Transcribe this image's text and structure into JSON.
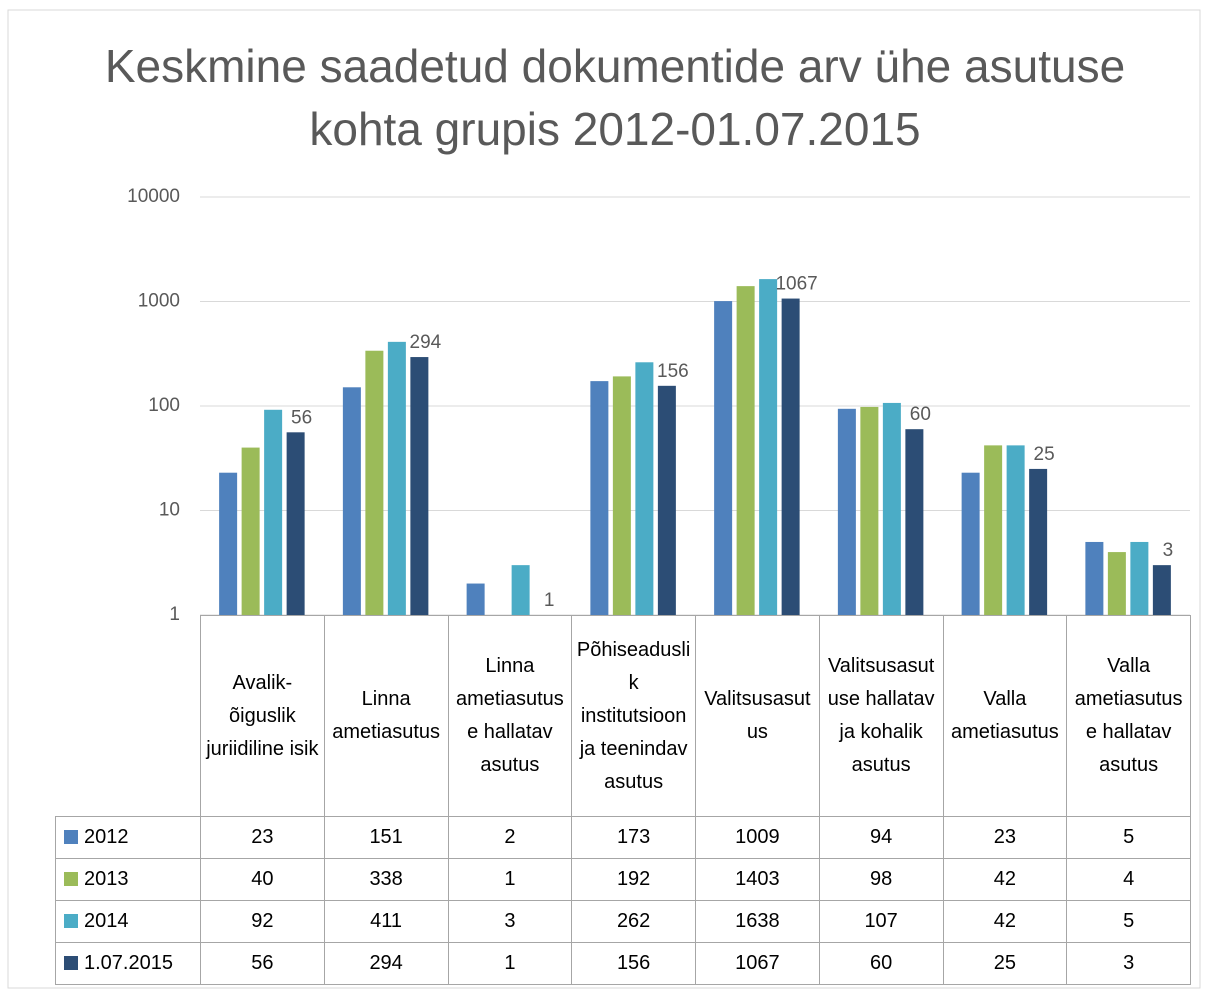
{
  "chart_data": {
    "type": "bar",
    "title": "Keskmine saadetud dokumentide arv ühe asutuse kohta grupis 2012-01.07.2015",
    "categories": [
      "Avalik-õiguslik juriidiline isik",
      "Linna ametiasutus",
      "Linna ametiasutuse hallatav asutus",
      "Põhiseaduslik institutsioon ja teenindav asutus",
      "Valitsusasutus",
      "Valitsusasutuse hallatav ja kohalik asutus",
      "Valla ametiasutus",
      "Valla ametiasutuse hallatav asutus"
    ],
    "series": [
      {
        "name": "2012",
        "color": "#4f81bd",
        "values": [
          23,
          151,
          2,
          173,
          1009,
          94,
          23,
          5
        ]
      },
      {
        "name": "2013",
        "color": "#9bbb59",
        "values": [
          40,
          338,
          1,
          192,
          1403,
          98,
          42,
          4
        ]
      },
      {
        "name": "2014",
        "color": "#4bacc6",
        "values": [
          92,
          411,
          3,
          262,
          1638,
          107,
          42,
          5
        ]
      },
      {
        "name": "1.07.2015",
        "color": "#2c4d75",
        "values": [
          56,
          294,
          1,
          156,
          1067,
          60,
          25,
          3
        ],
        "data_labels": true
      }
    ],
    "ylim": [
      1,
      10000
    ],
    "yticks": [
      1,
      10,
      100,
      1000,
      10000
    ],
    "log_scale": true,
    "grid": true,
    "data_table": true
  }
}
